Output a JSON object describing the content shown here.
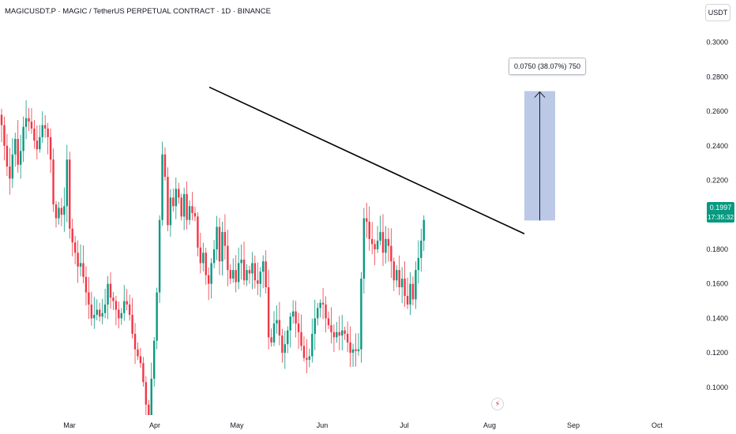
{
  "header": {
    "title": "MAGICUSDT.P · MAGIC / TetherUS PERPETUAL CONTRACT · 1D · BINANCE",
    "currency": "USDT"
  },
  "price_label": {
    "price": "0.1997",
    "countdown": "17:35:32"
  },
  "measure": {
    "label": "0.0750 (38.07%) 750"
  },
  "event_icon": "lightning-icon",
  "colors": {
    "up": "#089981",
    "down": "#f23645",
    "trendline": "#000000",
    "measure_fill": "#b4c3e3",
    "axis_text": "#131722"
  },
  "chart_data": {
    "type": "candlestick",
    "y_ticks": [
      "0.3000",
      "0.2800",
      "0.2600",
      "0.2400",
      "0.2200",
      "0.1800",
      "0.1600",
      "0.1400",
      "0.1200",
      "0.1000"
    ],
    "ylim": [
      0.083,
      0.3053
    ],
    "x_ticks": [
      "Mar",
      "Apr",
      "May",
      "Jun",
      "Jul",
      "Aug",
      "Sep",
      "Oct"
    ],
    "candles_close": [
      0.252,
      0.24,
      0.228,
      0.221,
      0.235,
      0.244,
      0.229,
      0.237,
      0.251,
      0.256,
      0.254,
      0.25,
      0.243,
      0.238,
      0.245,
      0.252,
      0.25,
      0.245,
      0.232,
      0.206,
      0.198,
      0.204,
      0.2,
      0.205,
      0.232,
      0.192,
      0.184,
      0.178,
      0.17,
      0.172,
      0.164,
      0.155,
      0.148,
      0.14,
      0.142,
      0.145,
      0.141,
      0.143,
      0.148,
      0.16,
      0.152,
      0.15,
      0.145,
      0.14,
      0.143,
      0.15,
      0.148,
      0.142,
      0.131,
      0.122,
      0.118,
      0.114,
      0.103,
      0.09,
      0.08,
      0.105,
      0.127,
      0.155,
      0.197,
      0.235,
      0.222,
      0.194,
      0.21,
      0.205,
      0.215,
      0.21,
      0.199,
      0.212,
      0.197,
      0.205,
      0.201,
      0.199,
      0.181,
      0.172,
      0.178,
      0.165,
      0.16,
      0.172,
      0.18,
      0.193,
      0.173,
      0.19,
      0.182,
      0.168,
      0.163,
      0.168,
      0.161,
      0.172,
      0.174,
      0.162,
      0.168,
      0.166,
      0.172,
      0.162,
      0.16,
      0.167,
      0.173,
      0.158,
      0.129,
      0.126,
      0.137,
      0.139,
      0.13,
      0.12,
      0.125,
      0.133,
      0.141,
      0.144,
      0.137,
      0.132,
      0.124,
      0.117,
      0.116,
      0.118,
      0.131,
      0.14,
      0.146,
      0.149,
      0.148,
      0.14,
      0.136,
      0.132,
      0.129,
      0.132,
      0.13,
      0.133,
      0.131,
      0.126,
      0.12,
      0.122,
      0.121,
      0.122,
      0.163,
      0.198,
      0.196,
      0.186,
      0.183,
      0.18,
      0.185,
      0.19,
      0.178,
      0.186,
      0.182,
      0.173,
      0.162,
      0.168,
      0.158,
      0.163,
      0.153,
      0.148,
      0.16,
      0.151,
      0.168,
      0.175,
      0.185,
      0.197
    ],
    "trendline": {
      "start_price": 0.274,
      "end_price": 0.189
    },
    "measure": {
      "from": 0.1967,
      "to": 0.2717,
      "change": 0.075,
      "percent": 38.07,
      "ticks": 750
    },
    "last_price": 0.1997
  }
}
